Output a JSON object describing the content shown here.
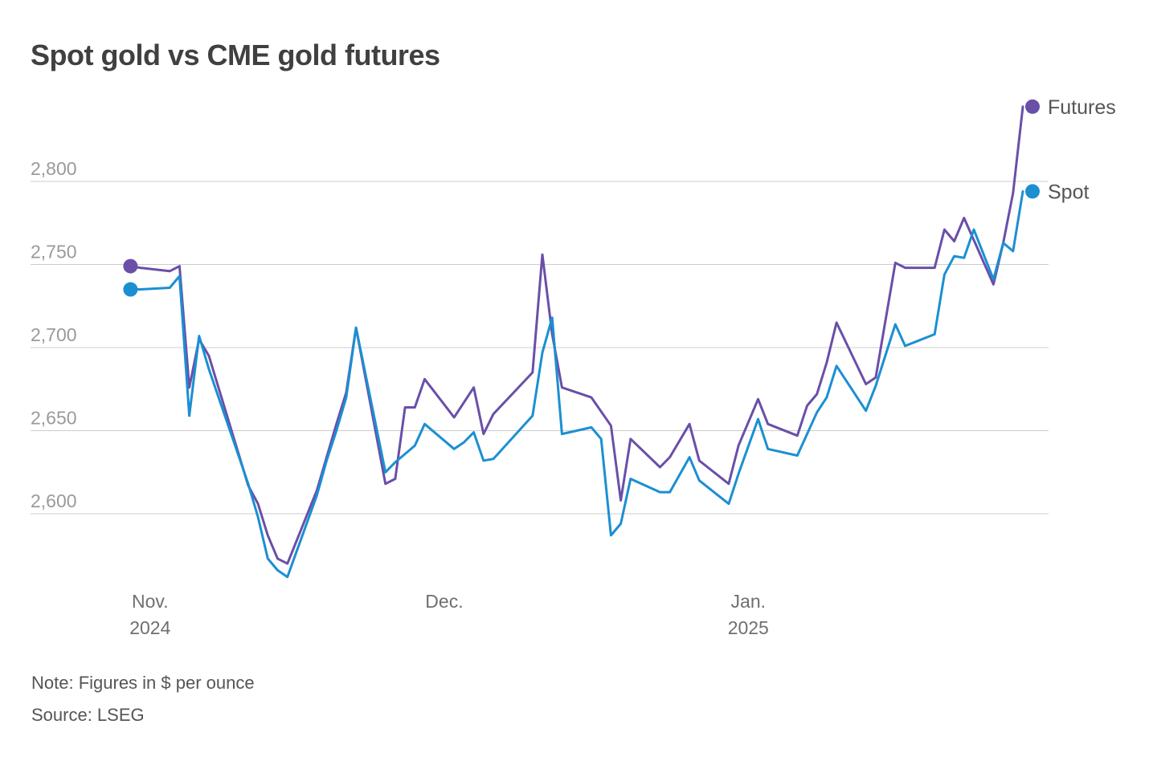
{
  "title": "Spot gold vs CME gold futures",
  "note": "Note: Figures in $ per ounce",
  "source": "Source: LSEG",
  "colors": {
    "futures": "#6a4fa8",
    "spot": "#1b8fd2",
    "grid": "#cccccc"
  },
  "chart_data": {
    "type": "line",
    "title": "Spot gold vs CME gold futures",
    "xlabel": "",
    "ylabel": "",
    "x_range": [
      "2024-10-28",
      "2025-01-29"
    ],
    "ylim": [
      2555,
      2860
    ],
    "y_ticks": [
      2600,
      2650,
      2700,
      2750,
      2800
    ],
    "y_tick_labels": [
      "2,600",
      "2,650",
      "2,700",
      "2,750",
      "2,800"
    ],
    "x_ticks": [
      {
        "date": "2024-11-01",
        "label": "Nov.",
        "sublabel": "2024"
      },
      {
        "date": "2024-12-01",
        "label": "Dec.",
        "sublabel": ""
      },
      {
        "date": "2025-01-01",
        "label": "Jan.",
        "sublabel": "2025"
      }
    ],
    "grid": "horizontal",
    "legend": "end-of-line labels, right",
    "series": [
      {
        "name": "Futures",
        "color": "#6a4fa8",
        "points": [
          [
            "2024-10-30",
            2749
          ],
          [
            "2024-10-31",
            2748
          ],
          [
            "2024-11-03",
            2746
          ],
          [
            "2024-11-04",
            2749
          ],
          [
            "2024-11-05",
            2676
          ],
          [
            "2024-11-06",
            2705
          ],
          [
            "2024-11-07",
            2695
          ],
          [
            "2024-11-11",
            2617
          ],
          [
            "2024-11-12",
            2606
          ],
          [
            "2024-11-13",
            2587
          ],
          [
            "2024-11-14",
            2573
          ],
          [
            "2024-11-15",
            2570
          ],
          [
            "2024-11-18",
            2614
          ],
          [
            "2024-11-19",
            2634
          ],
          [
            "2024-11-20",
            2654
          ],
          [
            "2024-11-21",
            2673
          ],
          [
            "2024-11-22",
            2712
          ],
          [
            "2024-11-25",
            2618
          ],
          [
            "2024-11-26",
            2621
          ],
          [
            "2024-11-27",
            2664
          ],
          [
            "2024-11-28",
            2664
          ],
          [
            "2024-11-29",
            2681
          ],
          [
            "2024-12-02",
            2658
          ],
          [
            "2024-12-03",
            2667
          ],
          [
            "2024-12-04",
            2676
          ],
          [
            "2024-12-05",
            2648
          ],
          [
            "2024-12-06",
            2660
          ],
          [
            "2024-12-10",
            2685
          ],
          [
            "2024-12-11",
            2756
          ],
          [
            "2024-12-12",
            2708
          ],
          [
            "2024-12-13",
            2676
          ],
          [
            "2024-12-16",
            2670
          ],
          [
            "2024-12-18",
            2653
          ],
          [
            "2024-12-19",
            2608
          ],
          [
            "2024-12-20",
            2645
          ],
          [
            "2024-12-23",
            2628
          ],
          [
            "2024-12-24",
            2634
          ],
          [
            "2024-12-26",
            2654
          ],
          [
            "2024-12-27",
            2632
          ],
          [
            "2024-12-30",
            2618
          ],
          [
            "2024-12-31",
            2641
          ],
          [
            "2025-01-02",
            2669
          ],
          [
            "2025-01-03",
            2654
          ],
          [
            "2025-01-06",
            2647
          ],
          [
            "2025-01-07",
            2665
          ],
          [
            "2025-01-08",
            2672
          ],
          [
            "2025-01-09",
            2691
          ],
          [
            "2025-01-10",
            2715
          ],
          [
            "2025-01-13",
            2678
          ],
          [
            "2025-01-14",
            2682
          ],
          [
            "2025-01-16",
            2751
          ],
          [
            "2025-01-17",
            2748
          ],
          [
            "2025-01-20",
            2748
          ],
          [
            "2025-01-21",
            2771
          ],
          [
            "2025-01-22",
            2764
          ],
          [
            "2025-01-23",
            2778
          ],
          [
            "2025-01-26",
            2738
          ],
          [
            "2025-01-27",
            2763
          ],
          [
            "2025-01-28",
            2793
          ],
          [
            "2025-01-29",
            2845
          ]
        ]
      },
      {
        "name": "Spot",
        "color": "#1b8fd2",
        "points": [
          [
            "2024-10-30",
            2735
          ],
          [
            "2024-10-31",
            2735
          ],
          [
            "2024-11-03",
            2736
          ],
          [
            "2024-11-04",
            2743
          ],
          [
            "2024-11-05",
            2659
          ],
          [
            "2024-11-06",
            2707
          ],
          [
            "2024-11-07",
            2687
          ],
          [
            "2024-11-11",
            2618
          ],
          [
            "2024-11-12",
            2598
          ],
          [
            "2024-11-13",
            2573
          ],
          [
            "2024-11-14",
            2566
          ],
          [
            "2024-11-15",
            2562
          ],
          [
            "2024-11-18",
            2611
          ],
          [
            "2024-11-19",
            2632
          ],
          [
            "2024-11-20",
            2650
          ],
          [
            "2024-11-21",
            2670
          ],
          [
            "2024-11-22",
            2712
          ],
          [
            "2024-11-25",
            2625
          ],
          [
            "2024-11-26",
            2631
          ],
          [
            "2024-11-27",
            2636
          ],
          [
            "2024-11-28",
            2641
          ],
          [
            "2024-11-29",
            2654
          ],
          [
            "2024-12-02",
            2639
          ],
          [
            "2024-12-03",
            2643
          ],
          [
            "2024-12-04",
            2649
          ],
          [
            "2024-12-05",
            2632
          ],
          [
            "2024-12-06",
            2633
          ],
          [
            "2024-12-10",
            2659
          ],
          [
            "2024-12-11",
            2697
          ],
          [
            "2024-12-12",
            2718
          ],
          [
            "2024-12-13",
            2648
          ],
          [
            "2024-12-16",
            2652
          ],
          [
            "2024-12-17",
            2645
          ],
          [
            "2024-12-18",
            2587
          ],
          [
            "2024-12-19",
            2594
          ],
          [
            "2024-12-20",
            2621
          ],
          [
            "2024-12-23",
            2613
          ],
          [
            "2024-12-24",
            2613
          ],
          [
            "2024-12-26",
            2634
          ],
          [
            "2024-12-27",
            2620
          ],
          [
            "2024-12-30",
            2606
          ],
          [
            "2024-12-31",
            2624
          ],
          [
            "2025-01-02",
            2657
          ],
          [
            "2025-01-03",
            2639
          ],
          [
            "2025-01-06",
            2635
          ],
          [
            "2025-01-07",
            2648
          ],
          [
            "2025-01-08",
            2661
          ],
          [
            "2025-01-09",
            2670
          ],
          [
            "2025-01-10",
            2689
          ],
          [
            "2025-01-13",
            2662
          ],
          [
            "2025-01-14",
            2677
          ],
          [
            "2025-01-16",
            2714
          ],
          [
            "2025-01-17",
            2701
          ],
          [
            "2025-01-20",
            2708
          ],
          [
            "2025-01-21",
            2744
          ],
          [
            "2025-01-22",
            2755
          ],
          [
            "2025-01-23",
            2754
          ],
          [
            "2025-01-24",
            2771
          ],
          [
            "2025-01-26",
            2741
          ],
          [
            "2025-01-27",
            2763
          ],
          [
            "2025-01-28",
            2758
          ],
          [
            "2025-01-29",
            2794
          ]
        ]
      }
    ]
  }
}
